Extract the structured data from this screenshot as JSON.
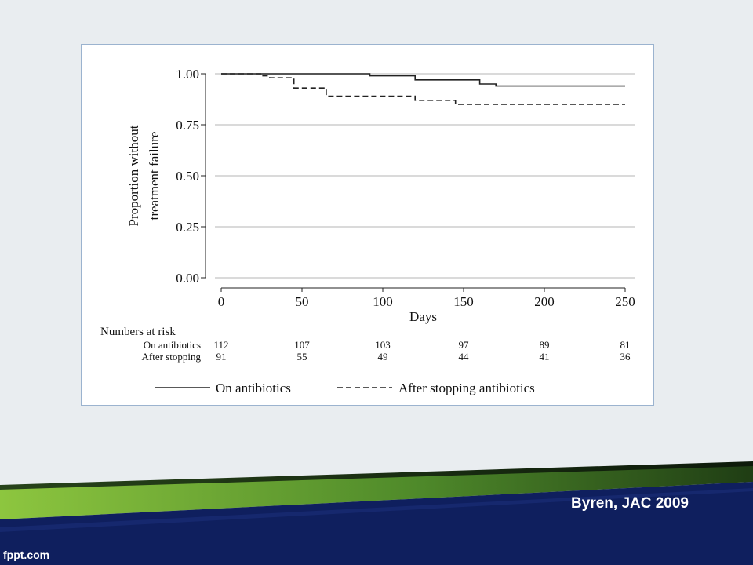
{
  "slide": {
    "citation": "Byren, JAC 2009",
    "site_brand": "fppt.com"
  },
  "colors": {
    "background": "#e9edf0",
    "navy": "#0f1f5e",
    "green_light": "#8dc63f",
    "green_dark": "#2f5f1c",
    "frame_border": "#9bb3cf"
  },
  "chart_data": {
    "type": "line",
    "title": "",
    "xlabel": "Days",
    "ylabel_lines": [
      "Proportion without",
      "treatment failure"
    ],
    "xlim": [
      0,
      250
    ],
    "ylim": [
      0,
      1
    ],
    "x_ticks": [
      0,
      50,
      100,
      150,
      200,
      250
    ],
    "y_ticks": [
      0,
      0.25,
      0.5,
      0.75,
      1.0
    ],
    "y_tick_labels": [
      "0.00",
      "0.25",
      "0.50",
      "0.75",
      "1.00"
    ],
    "grid": "horizontal",
    "series": [
      {
        "name": "On antibiotics",
        "style": "solid",
        "step_x": [
          0,
          92,
          120,
          160,
          170,
          250
        ],
        "step_y": [
          1.0,
          0.99,
          0.97,
          0.95,
          0.94,
          0.94
        ]
      },
      {
        "name": "After stopping antibiotics",
        "style": "dashed",
        "step_x": [
          0,
          25,
          30,
          45,
          65,
          120,
          145,
          250
        ],
        "step_y": [
          1.0,
          0.99,
          0.98,
          0.93,
          0.89,
          0.87,
          0.85,
          0.85
        ]
      }
    ],
    "risk_table": {
      "title": "Numbers at risk",
      "times": [
        0,
        50,
        100,
        150,
        200,
        250
      ],
      "rows": [
        {
          "label": "On antibiotics",
          "values": [
            "112",
            "107",
            "103",
            "97",
            "89",
            "81"
          ]
        },
        {
          "label": "After stopping",
          "values": [
            "91",
            "55",
            "49",
            "44",
            "41",
            "36"
          ]
        }
      ]
    },
    "legend": {
      "position": "bottom",
      "entries": [
        {
          "label": "On antibiotics",
          "style": "solid"
        },
        {
          "label": "After stopping antibiotics",
          "style": "dashed"
        }
      ]
    }
  }
}
